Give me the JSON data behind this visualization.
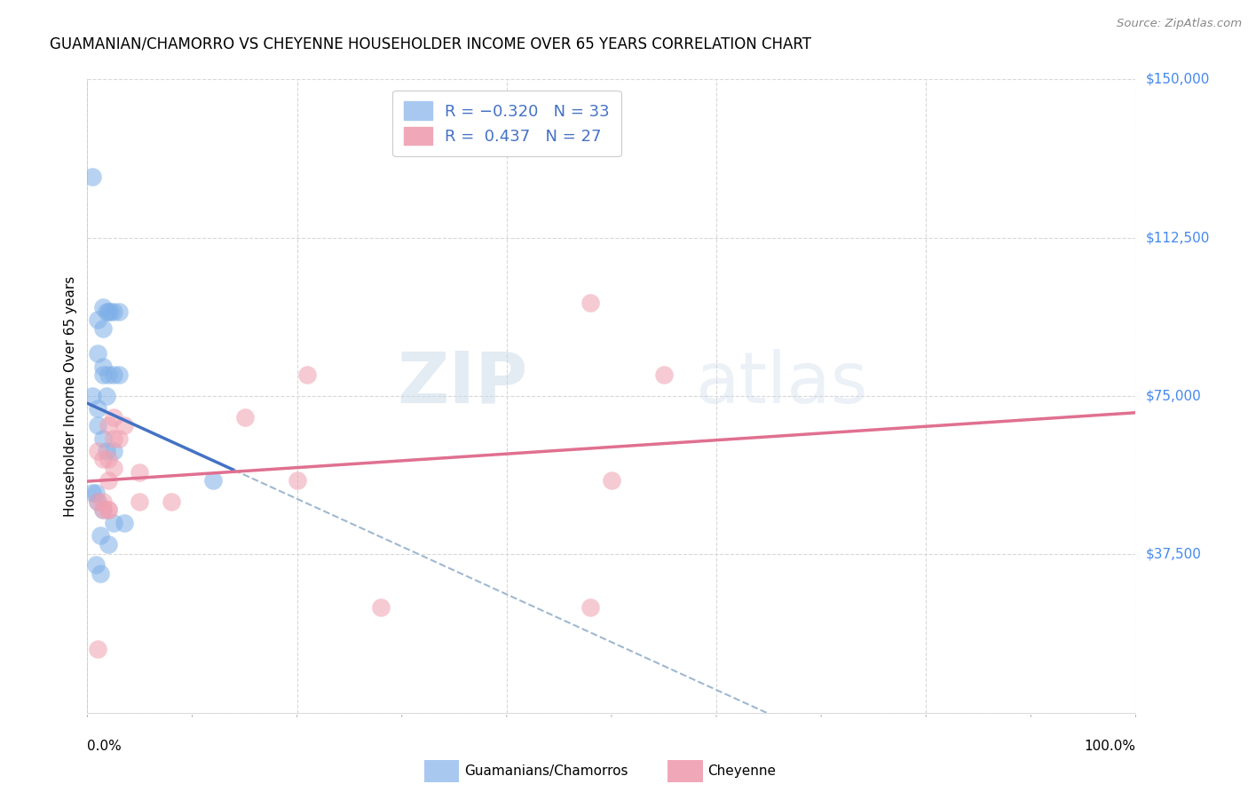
{
  "title": "GUAMANIAN/CHAMORRO VS CHEYENNE HOUSEHOLDER INCOME OVER 65 YEARS CORRELATION CHART",
  "source": "Source: ZipAtlas.com",
  "ylabel": "Householder Income Over 65 years",
  "y_ticks": [
    0,
    37500,
    75000,
    112500,
    150000
  ],
  "y_tick_labels": [
    "",
    "$37,500",
    "$75,000",
    "$112,500",
    "$150,000"
  ],
  "bg_color": "#ffffff",
  "grid_color": "#d8d8d8",
  "blue_line_color": "#4472c4",
  "pink_line_color": "#e07090",
  "blue_dash_color": "#a0b8d0",
  "scatter_blue": "#7fb0e8",
  "scatter_pink": "#f0a0b0",
  "watermark_zip": "ZIP",
  "watermark_atlas": "atlas",
  "xmin": 0,
  "xmax": 100,
  "ymin": 0,
  "ymax": 150000,
  "blue_x": [
    0.5,
    1.5,
    2.0,
    2.5,
    3.0,
    1.0,
    1.5,
    1.8,
    2.2,
    1.0,
    1.5,
    2.0,
    2.5,
    0.5,
    1.0,
    1.5,
    1.8,
    3.0,
    1.0,
    1.5,
    1.8,
    2.5,
    0.5,
    1.0,
    1.5,
    2.5,
    3.5,
    0.8,
    1.2,
    2.0,
    0.8,
    1.2,
    12.0
  ],
  "blue_y": [
    127000,
    96000,
    95000,
    95000,
    95000,
    93000,
    91000,
    95000,
    95000,
    85000,
    82000,
    80000,
    80000,
    75000,
    72000,
    80000,
    75000,
    80000,
    68000,
    65000,
    62000,
    62000,
    52000,
    50000,
    48000,
    45000,
    45000,
    52000,
    42000,
    40000,
    35000,
    33000,
    55000
  ],
  "pink_x": [
    2.5,
    3.0,
    2.0,
    2.5,
    3.5,
    1.0,
    1.5,
    2.0,
    2.5,
    1.0,
    1.5,
    2.0,
    15.0,
    28.0,
    48.0,
    50.0,
    2.0,
    5.0,
    8.0,
    5.0,
    20.0,
    21.0,
    1.0,
    1.5,
    2.0,
    48.0,
    55.0
  ],
  "pink_y": [
    65000,
    65000,
    68000,
    70000,
    68000,
    62000,
    60000,
    60000,
    58000,
    50000,
    48000,
    48000,
    70000,
    25000,
    25000,
    55000,
    55000,
    50000,
    50000,
    57000,
    55000,
    80000,
    15000,
    50000,
    48000,
    97000,
    80000
  ],
  "blue_line_x0": 0,
  "blue_line_x_solid_end": 14,
  "pink_line_x0": 0,
  "pink_line_x1": 100
}
